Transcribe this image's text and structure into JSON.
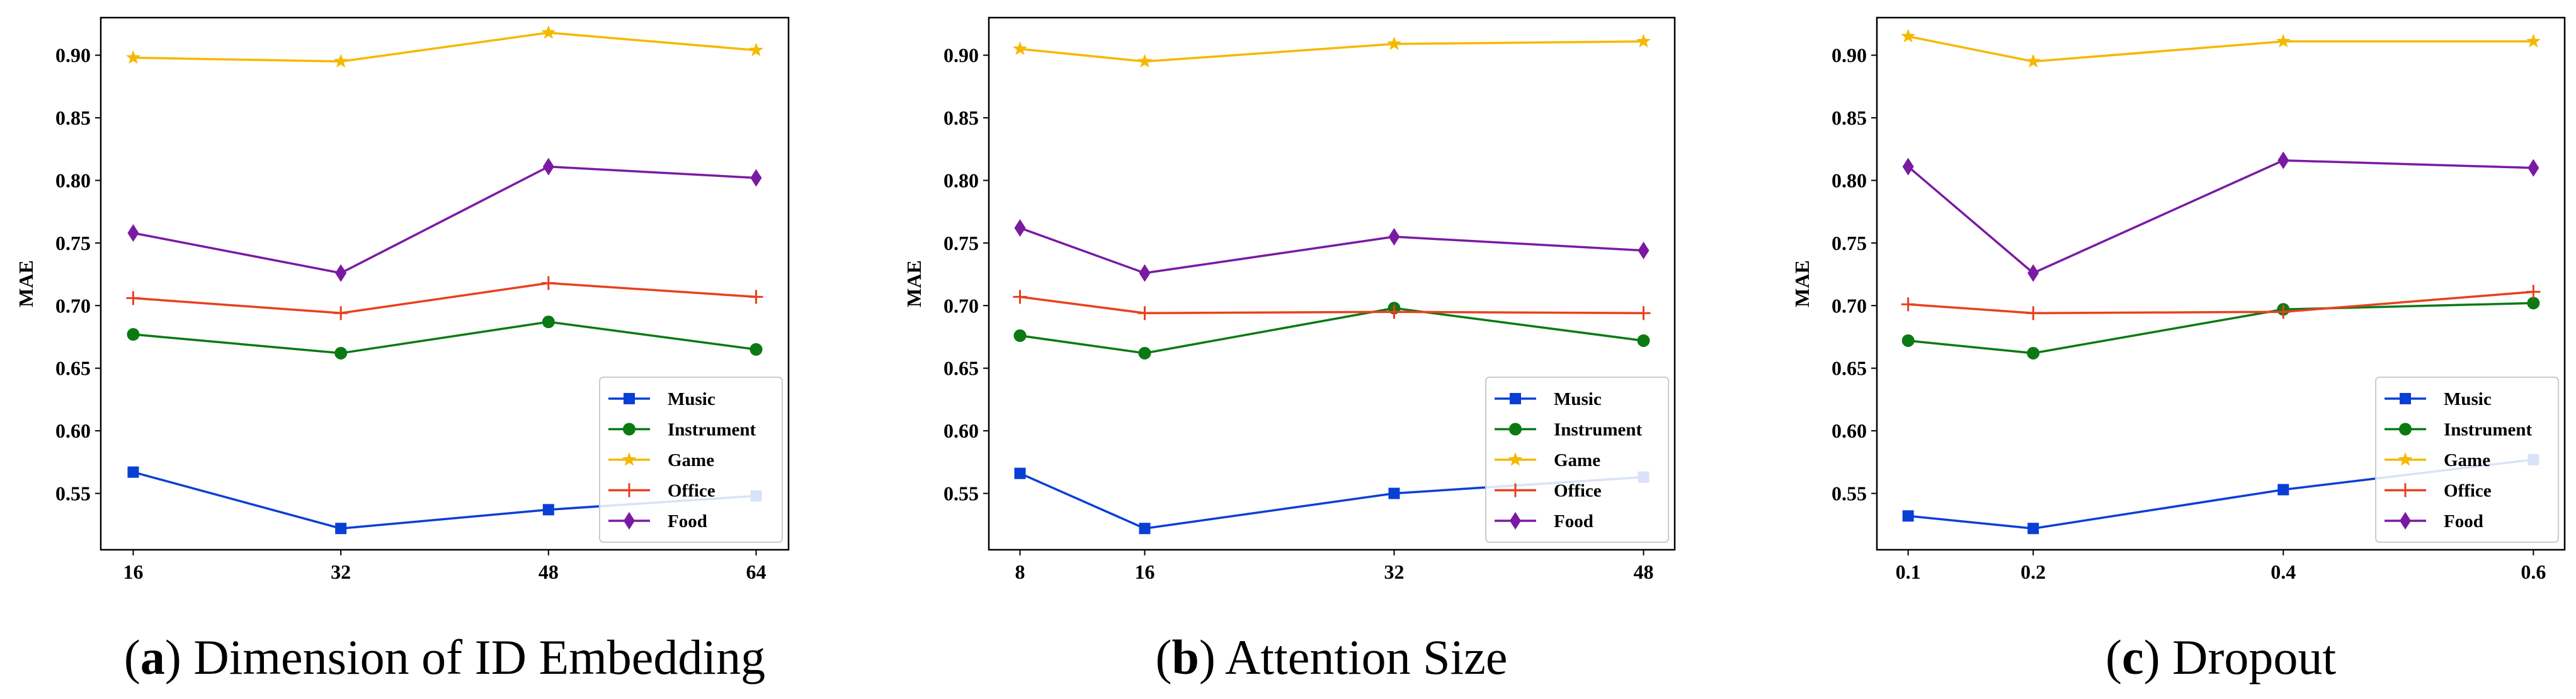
{
  "series_styles": [
    {
      "name": "Music",
      "color": "#0a3fd6",
      "marker": "square"
    },
    {
      "name": "Instrument",
      "color": "#0b7a14",
      "marker": "circle"
    },
    {
      "name": "Game",
      "color": "#f5b800",
      "marker": "star"
    },
    {
      "name": "Office",
      "color": "#e8401f",
      "marker": "plus"
    },
    {
      "name": "Food",
      "color": "#7a1aa3",
      "marker": "diamond"
    }
  ],
  "chart_data": [
    {
      "type": "line",
      "caption_letter": "a",
      "caption_text": "Dimension of ID Embedding",
      "title": "",
      "xlabel": "",
      "ylabel": "MAE",
      "x": [
        16,
        32,
        48,
        64
      ],
      "xticks": [
        16,
        32,
        48,
        64
      ],
      "xtick_labels": [
        "16",
        "32",
        "48",
        "64"
      ],
      "xlim": [
        13.5,
        66.5
      ],
      "ylim": [
        0.505,
        0.93
      ],
      "yticks": [
        0.55,
        0.6,
        0.65,
        0.7,
        0.75,
        0.8,
        0.85,
        0.9
      ],
      "ytick_labels": [
        "0.55",
        "0.60",
        "0.65",
        "0.70",
        "0.75",
        "0.80",
        "0.85",
        "0.90"
      ],
      "legend_loc": "lower-right",
      "series": [
        {
          "name": "Music",
          "values": [
            0.567,
            0.522,
            0.537,
            0.548
          ]
        },
        {
          "name": "Instrument",
          "values": [
            0.677,
            0.662,
            0.687,
            0.665
          ]
        },
        {
          "name": "Game",
          "values": [
            0.898,
            0.895,
            0.918,
            0.904
          ]
        },
        {
          "name": "Office",
          "values": [
            0.706,
            0.694,
            0.718,
            0.707
          ]
        },
        {
          "name": "Food",
          "values": [
            0.758,
            0.726,
            0.811,
            0.802
          ]
        }
      ]
    },
    {
      "type": "line",
      "caption_letter": "b",
      "caption_text": "Attention Size",
      "title": "",
      "xlabel": "",
      "ylabel": "MAE",
      "x": [
        8,
        16,
        32,
        48
      ],
      "xticks": [
        8,
        16,
        32,
        48
      ],
      "xtick_labels": [
        "8",
        "16",
        "32",
        "48"
      ],
      "xlim": [
        6.0,
        50.0
      ],
      "ylim": [
        0.505,
        0.93
      ],
      "yticks": [
        0.55,
        0.6,
        0.65,
        0.7,
        0.75,
        0.8,
        0.85,
        0.9
      ],
      "ytick_labels": [
        "0.55",
        "0.60",
        "0.65",
        "0.70",
        "0.75",
        "0.80",
        "0.85",
        "0.90"
      ],
      "legend_loc": "lower-right",
      "series": [
        {
          "name": "Music",
          "values": [
            0.566,
            0.522,
            0.55,
            0.563
          ]
        },
        {
          "name": "Instrument",
          "values": [
            0.676,
            0.662,
            0.698,
            0.672
          ]
        },
        {
          "name": "Game",
          "values": [
            0.905,
            0.895,
            0.909,
            0.911
          ]
        },
        {
          "name": "Office",
          "values": [
            0.707,
            0.694,
            0.695,
            0.694
          ]
        },
        {
          "name": "Food",
          "values": [
            0.762,
            0.726,
            0.755,
            0.744
          ]
        }
      ]
    },
    {
      "type": "line",
      "caption_letter": "c",
      "caption_text": "Dropout",
      "title": "",
      "xlabel": "",
      "ylabel": "MAE",
      "x": [
        0.1,
        0.2,
        0.4,
        0.6
      ],
      "xticks": [
        0.1,
        0.2,
        0.4,
        0.6
      ],
      "xtick_labels": [
        "0.1",
        "0.2",
        "0.4",
        "0.6"
      ],
      "xlim": [
        0.075,
        0.625
      ],
      "ylim": [
        0.505,
        0.93
      ],
      "yticks": [
        0.55,
        0.6,
        0.65,
        0.7,
        0.75,
        0.8,
        0.85,
        0.9
      ],
      "ytick_labels": [
        "0.55",
        "0.60",
        "0.65",
        "0.70",
        "0.75",
        "0.80",
        "0.85",
        "0.90"
      ],
      "legend_loc": "lower-right",
      "series": [
        {
          "name": "Music",
          "values": [
            0.532,
            0.522,
            0.553,
            0.577
          ]
        },
        {
          "name": "Instrument",
          "values": [
            0.672,
            0.662,
            0.697,
            0.702
          ]
        },
        {
          "name": "Game",
          "values": [
            0.915,
            0.895,
            0.911,
            0.911
          ]
        },
        {
          "name": "Office",
          "values": [
            0.701,
            0.694,
            0.695,
            0.711
          ]
        },
        {
          "name": "Food",
          "values": [
            0.811,
            0.726,
            0.816,
            0.81
          ]
        }
      ]
    }
  ]
}
